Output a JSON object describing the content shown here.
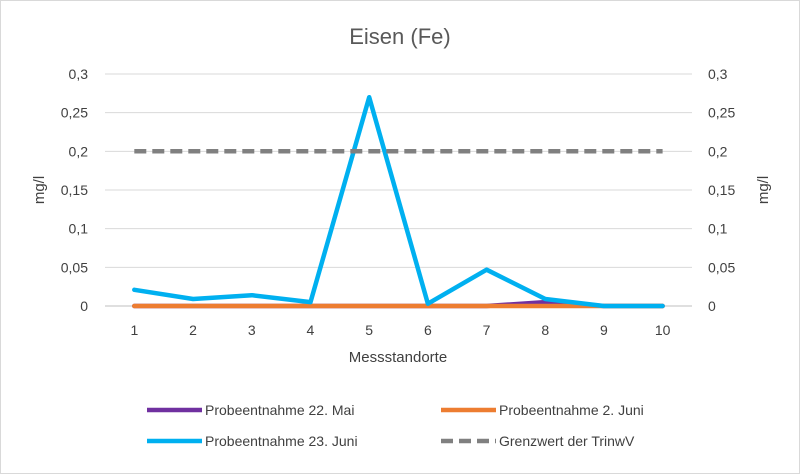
{
  "chart_data": {
    "type": "line",
    "title": "Eisen (Fe)",
    "xlabel": "Messstandorte",
    "ylabel": "mg/l",
    "ylabel_right": "mg/l",
    "categories": [
      "1",
      "2",
      "3",
      "4",
      "5",
      "6",
      "7",
      "8",
      "9",
      "10"
    ],
    "ylim": [
      0,
      0.3
    ],
    "yticks": [
      "0",
      "0,05",
      "0,1",
      "0,15",
      "0,2",
      "0,25",
      "0,3"
    ],
    "ytick_values": [
      0,
      0.05,
      0.1,
      0.15,
      0.2,
      0.25,
      0.3
    ],
    "grid": true,
    "legend_position": "bottom",
    "series": [
      {
        "name": "Probeentnahme 22. Mai",
        "color": "#7030a0",
        "dashed": false,
        "values": [
          0,
          0,
          0,
          0,
          0,
          0,
          0,
          0.005,
          0,
          0
        ]
      },
      {
        "name": "Probeentnahme 2. Juni",
        "color": "#ed7d31",
        "dashed": false,
        "values": [
          0,
          0,
          0,
          0,
          0,
          0,
          0,
          0,
          0,
          0
        ]
      },
      {
        "name": "Probeentnahme 23. Juni",
        "color": "#00b0f0",
        "dashed": false,
        "values": [
          0.021,
          0.009,
          0.014,
          0.005,
          0.27,
          0.003,
          0.047,
          0.009,
          0,
          0
        ]
      },
      {
        "name": "Grenzwert der TrinwV",
        "color": "#808080",
        "dashed": true,
        "values": [
          0.2,
          0.2,
          0.2,
          0.2,
          0.2,
          0.2,
          0.2,
          0.2,
          0.2,
          0.2
        ]
      }
    ]
  }
}
